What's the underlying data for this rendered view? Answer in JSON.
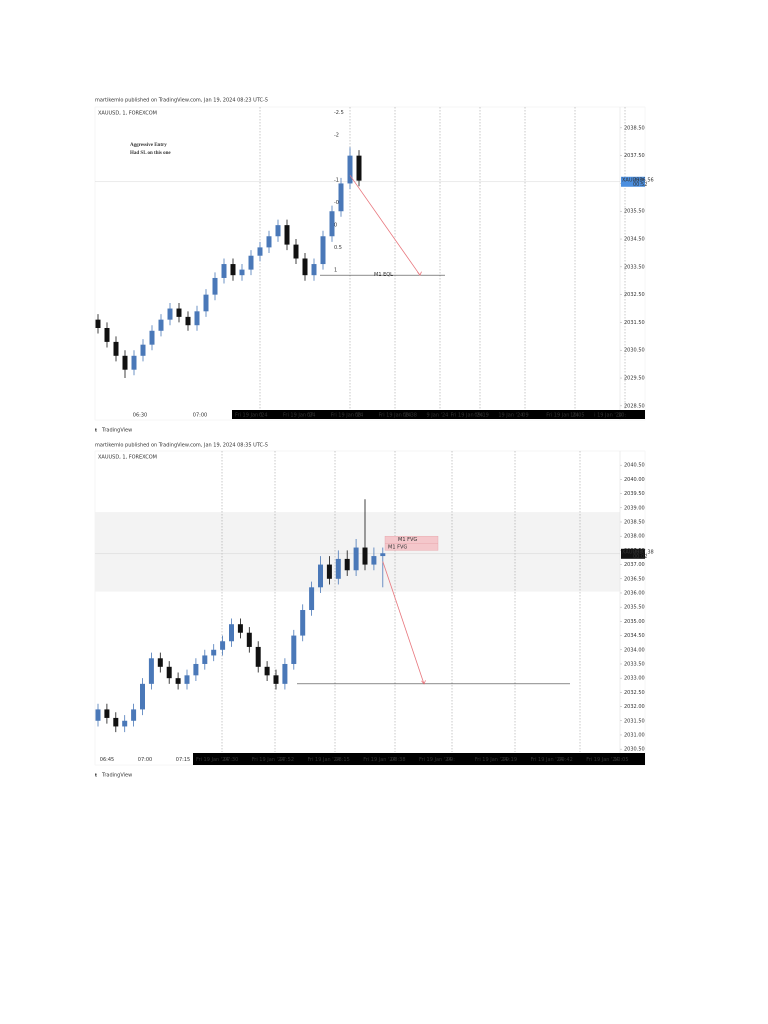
{
  "chart_data": [
    {
      "type": "candlestick",
      "header": "martikemlo published on TradingView.com, Jan 19, 2024 08:23 UTC-5",
      "symbol": "XAUUSD, 1, FOREXCOM",
      "annotation": [
        "Aggressive Entry",
        "Had SL on this one"
      ],
      "fib_levels": [
        -2.5,
        -2,
        -1,
        -0.5,
        0,
        0.5,
        1
      ],
      "up_color": "#4a78b8",
      "down_color": "#111111",
      "open": [
        2031.6,
        2031.3,
        2030.8,
        2030.3,
        2029.8,
        2030.3,
        2030.7,
        2031.2,
        2031.6,
        2032.0,
        2031.7,
        2031.4,
        2031.9,
        2032.5,
        2033.1,
        2033.6,
        2033.2,
        2033.4,
        2033.9,
        2034.2,
        2034.6,
        2035.0,
        2034.3,
        2033.8,
        2033.2,
        2033.6,
        2034.6,
        2035.5,
        2036.5,
        2037.5
      ],
      "high": [
        2031.8,
        2031.5,
        2031.0,
        2030.5,
        2030.5,
        2030.9,
        2031.4,
        2031.8,
        2032.2,
        2032.2,
        2031.9,
        2032.1,
        2032.7,
        2033.3,
        2033.8,
        2033.8,
        2033.6,
        2034.1,
        2034.4,
        2034.8,
        2035.2,
        2035.2,
        2034.5,
        2034.0,
        2033.8,
        2034.8,
        2035.7,
        2036.7,
        2037.8,
        2037.7
      ],
      "low": [
        2031.1,
        2030.6,
        2030.1,
        2029.5,
        2029.6,
        2030.1,
        2030.5,
        2031.0,
        2031.4,
        2031.5,
        2031.2,
        2031.2,
        2031.7,
        2032.3,
        2032.9,
        2033.0,
        2033.0,
        2033.2,
        2033.7,
        2034.0,
        2034.4,
        2034.1,
        2033.6,
        2033.0,
        2033.0,
        2033.4,
        2034.4,
        2035.3,
        2036.3,
        2036.4
      ],
      "close": [
        2031.3,
        2030.8,
        2030.3,
        2029.8,
        2030.3,
        2030.7,
        2031.2,
        2031.6,
        2032.0,
        2031.7,
        2031.4,
        2031.9,
        2032.5,
        2033.1,
        2033.6,
        2033.2,
        2033.4,
        2033.9,
        2034.2,
        2034.6,
        2035.0,
        2034.3,
        2033.8,
        2033.2,
        2033.6,
        2034.6,
        2035.5,
        2036.5,
        2037.5,
        2036.6
      ],
      "ylim": [
        2028.35,
        2039.25
      ],
      "yticks": [
        {
          "value": 2038.5,
          "label": "2038.50"
        },
        {
          "value": 2037.5,
          "label": "2037.50"
        },
        {
          "value": 2036.5,
          "label": "2036.50"
        },
        {
          "value": 2035.5,
          "label": "2035.50"
        },
        {
          "value": 2034.5,
          "label": "2034.50"
        },
        {
          "value": 2033.5,
          "label": "2033.50"
        },
        {
          "value": 2032.5,
          "label": "2032.50"
        },
        {
          "value": 2031.5,
          "label": "2031.50"
        },
        {
          "value": 2030.5,
          "label": "2030.50"
        },
        {
          "value": 2029.5,
          "label": "2029.50"
        },
        {
          "value": 2028.5,
          "label": "2028.50"
        }
      ],
      "level": {
        "label": "M1 EQL",
        "value": 2033.2
      },
      "price_tag": {
        "symbol": "XAUUSD",
        "value": 2036.56,
        "countdown": "00:52"
      },
      "time_labels": [
        "06:30",
        "07:00"
      ],
      "time_strip_labels": [
        "Fri 19 Jan '24",
        "0",
        "Fri 19 Jan '24",
        "07",
        "Fri 19 Jan '24",
        "08",
        "Fri 19 Jan '24",
        "08:38",
        "9 Jan '24",
        "Fri 19 Jan '24",
        "09:19",
        "19 Jan '24",
        "09",
        "Fri 19 Jan '24",
        "10:05",
        "i 19 Jan '24",
        "10:"
      ],
      "footer": "TradingView"
    },
    {
      "type": "candlestick",
      "header": "martikemlo published on TradingView.com, Jan 19, 2024 08:35 UTC-5",
      "symbol": "XAUUSD, 1, FOREXCOM",
      "up_color": "#4a78b8",
      "down_color": "#111111",
      "open": [
        2031.5,
        2031.9,
        2031.6,
        2031.3,
        2031.5,
        2031.9,
        2032.8,
        2033.7,
        2033.4,
        2033.0,
        2032.8,
        2033.1,
        2033.5,
        2033.8,
        2034.0,
        2034.3,
        2034.9,
        2034.6,
        2034.1,
        2033.4,
        2033.1,
        2032.8,
        2033.5,
        2034.5,
        2035.4,
        2036.2,
        2037.0,
        2036.5,
        2037.2,
        2036.8,
        2037.6,
        2037.0,
        2037.3
      ],
      "high": [
        2032.1,
        2032.1,
        2031.8,
        2031.7,
        2032.1,
        2033.0,
        2033.9,
        2033.9,
        2033.6,
        2033.2,
        2033.3,
        2033.7,
        2034.0,
        2034.2,
        2034.5,
        2035.1,
        2035.1,
        2034.8,
        2034.3,
        2033.6,
        2033.3,
        2033.7,
        2034.7,
        2035.6,
        2036.4,
        2037.3,
        2037.3,
        2037.5,
        2037.5,
        2037.9,
        2039.3,
        2037.6,
        2037.6
      ],
      "low": [
        2031.3,
        2031.4,
        2031.1,
        2031.1,
        2031.3,
        2031.7,
        2032.6,
        2033.2,
        2032.8,
        2032.6,
        2032.6,
        2032.9,
        2033.3,
        2033.6,
        2033.8,
        2034.1,
        2034.4,
        2033.9,
        2033.2,
        2032.9,
        2032.6,
        2032.6,
        2033.3,
        2034.3,
        2035.2,
        2036.0,
        2036.3,
        2036.3,
        2036.6,
        2036.6,
        2036.8,
        2036.8,
        2036.2
      ],
      "close": [
        2031.9,
        2031.6,
        2031.3,
        2031.5,
        2031.9,
        2032.8,
        2033.7,
        2033.4,
        2033.0,
        2032.8,
        2033.1,
        2033.5,
        2033.8,
        2034.0,
        2034.3,
        2034.9,
        2034.6,
        2034.1,
        2033.4,
        2033.1,
        2032.8,
        2033.5,
        2034.5,
        2035.4,
        2036.2,
        2037.0,
        2036.5,
        2037.2,
        2036.8,
        2037.6,
        2037.0,
        2037.3,
        2037.4
      ],
      "ylim": [
        2030.4,
        2041.0
      ],
      "yticks": [
        {
          "value": 2040.5,
          "label": "2040.50"
        },
        {
          "value": 2040.0,
          "label": "2040.00"
        },
        {
          "value": 2039.5,
          "label": "2039.50"
        },
        {
          "value": 2039.0,
          "label": "2039.00"
        },
        {
          "value": 2038.5,
          "label": "2038.50"
        },
        {
          "value": 2038.0,
          "label": "2038.00"
        },
        {
          "value": 2037.5,
          "label": "2037.50"
        },
        {
          "value": 2037.0,
          "label": "2037.00"
        },
        {
          "value": 2036.5,
          "label": "2036.50"
        },
        {
          "value": 2036.0,
          "label": "2036.00"
        },
        {
          "value": 2035.5,
          "label": "2035.50"
        },
        {
          "value": 2035.0,
          "label": "2035.00"
        },
        {
          "value": 2034.5,
          "label": "2034.50"
        },
        {
          "value": 2034.0,
          "label": "2034.00"
        },
        {
          "value": 2033.5,
          "label": "2033.50"
        },
        {
          "value": 2033.0,
          "label": "2033.00"
        },
        {
          "value": 2032.5,
          "label": "2032.50"
        },
        {
          "value": 2032.0,
          "label": "2032.00"
        },
        {
          "value": 2031.5,
          "label": "2031.50"
        },
        {
          "value": 2031.0,
          "label": "2031.00"
        },
        {
          "value": 2030.5,
          "label": "2030.50"
        }
      ],
      "zone": [
        2036.05,
        2038.85
      ],
      "fvg": {
        "labels": [
          "M1 FVG",
          "M1 FVG"
        ],
        "range": [
          2037.5,
          2038.0
        ]
      },
      "level": {
        "value": 2032.8
      },
      "price_tag": {
        "symbol": "XAUUSD",
        "value": 2037.38,
        "countdown": "00:02"
      },
      "time_labels": [
        "06:45",
        "07:00",
        "07:15"
      ],
      "time_strip_labels": [
        "Fri 19 Jan '24",
        "07:30",
        "Fri 19 Jan '24",
        "07:52",
        "Fri 19 Jan '24",
        "08:15",
        "Fri 19 Jan '24",
        "08:38",
        "Fri 19 Jan '24",
        "09:",
        "Fri 19 Jan '24",
        "09:19",
        "Fri 19 Jan '24",
        "09:42",
        "Fri 19 Jan '24",
        "10:05"
      ],
      "footer": "TradingView"
    }
  ]
}
